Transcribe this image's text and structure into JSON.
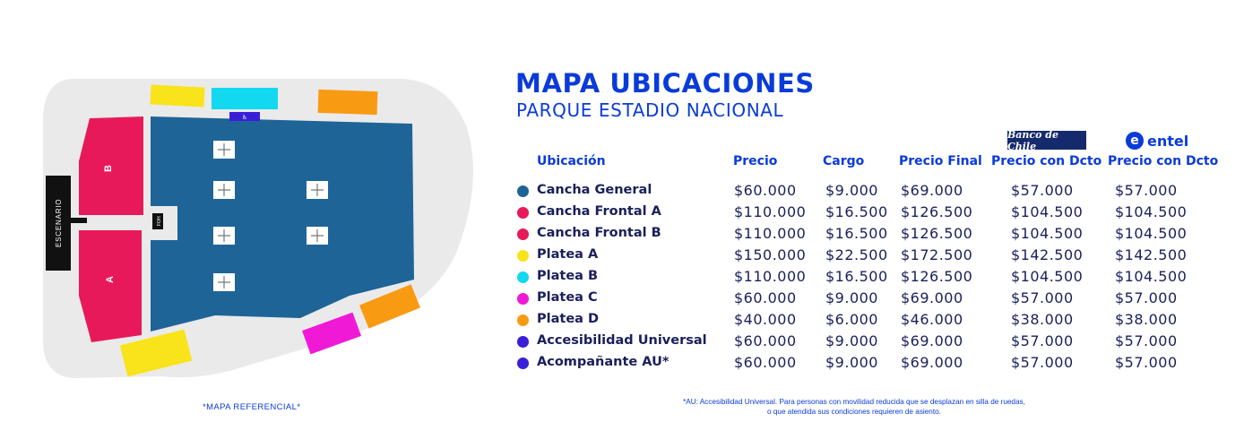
{
  "header": {
    "title": "MAPA UBICACIONES",
    "subtitle": "PARQUE ESTADIO NACIONAL"
  },
  "sponsors": {
    "bank": "Banco de Chile",
    "entel_mark": "e",
    "entel": "entel"
  },
  "map": {
    "stage_label": "ESCENARIO",
    "section_b": "B",
    "section_a": "A",
    "foh_label": "FOH",
    "accessibility_label": "♿",
    "note": "*MAPA REFERENCIAL*",
    "colors": {
      "background": "#eaeaea",
      "cancha_general": "#1f6497",
      "cancha_frontal": "#e8195a",
      "platea_a": "#f9e31a",
      "platea_b": "#12d9f0",
      "platea_c": "#f019d6",
      "platea_d": "#f99a13",
      "accesibilidad": "#3a1fd8",
      "stage": "#111111"
    }
  },
  "table": {
    "headers": {
      "ubicacion": "Ubicación",
      "precio": "Precio",
      "cargo": "Cargo",
      "precio_final": "Precio Final",
      "precio_dcto_banco": "Precio con Dcto",
      "precio_dcto_entel": "Precio con Dcto"
    },
    "rows": [
      {
        "ubicacion": "Cancha General",
        "color": "#1f6497",
        "precio": "$60.000",
        "cargo": "$9.000",
        "precio_final": "$69.000",
        "dcto_banco": "$57.000",
        "dcto_entel": "$57.000"
      },
      {
        "ubicacion": "Cancha Frontal A",
        "color": "#e8195a",
        "precio": "$110.000",
        "cargo": "$16.500",
        "precio_final": "$126.500",
        "dcto_banco": "$104.500",
        "dcto_entel": "$104.500"
      },
      {
        "ubicacion": "Cancha Frontal B",
        "color": "#e8195a",
        "precio": "$110.000",
        "cargo": "$16.500",
        "precio_final": "$126.500",
        "dcto_banco": "$104.500",
        "dcto_entel": "$104.500"
      },
      {
        "ubicacion": "Platea A",
        "color": "#f9e31a",
        "precio": "$150.000",
        "cargo": "$22.500",
        "precio_final": "$172.500",
        "dcto_banco": "$142.500",
        "dcto_entel": "$142.500"
      },
      {
        "ubicacion": "Platea B",
        "color": "#12d9f0",
        "precio": "$110.000",
        "cargo": "$16.500",
        "precio_final": "$126.500",
        "dcto_banco": "$104.500",
        "dcto_entel": "$104.500"
      },
      {
        "ubicacion": "Platea C",
        "color": "#f019d6",
        "precio": "$60.000",
        "cargo": "$9.000",
        "precio_final": "$69.000",
        "dcto_banco": "$57.000",
        "dcto_entel": "$57.000"
      },
      {
        "ubicacion": "Platea D",
        "color": "#f99a13",
        "precio": "$40.000",
        "cargo": "$6.000",
        "precio_final": "$46.000",
        "dcto_banco": "$38.000",
        "dcto_entel": "$38.000"
      },
      {
        "ubicacion": "Accesibilidad Universal",
        "color": "#3a1fd8",
        "precio": "$60.000",
        "cargo": "$9.000",
        "precio_final": "$69.000",
        "dcto_banco": "$57.000",
        "dcto_entel": "$57.000"
      },
      {
        "ubicacion": "Acompañante AU*",
        "color": "#3a1fd8",
        "precio": "$60.000",
        "cargo": "$9.000",
        "precio_final": "$69.000",
        "dcto_banco": "$57.000",
        "dcto_entel": "$57.000"
      }
    ]
  },
  "footnote": {
    "line1": "*AU: Accesibilidad Universal. Para personas con movilidad reducida que se desplazan en silla de ruedas,",
    "line2": "o que atendida sus condiciones requieren de asiento."
  }
}
